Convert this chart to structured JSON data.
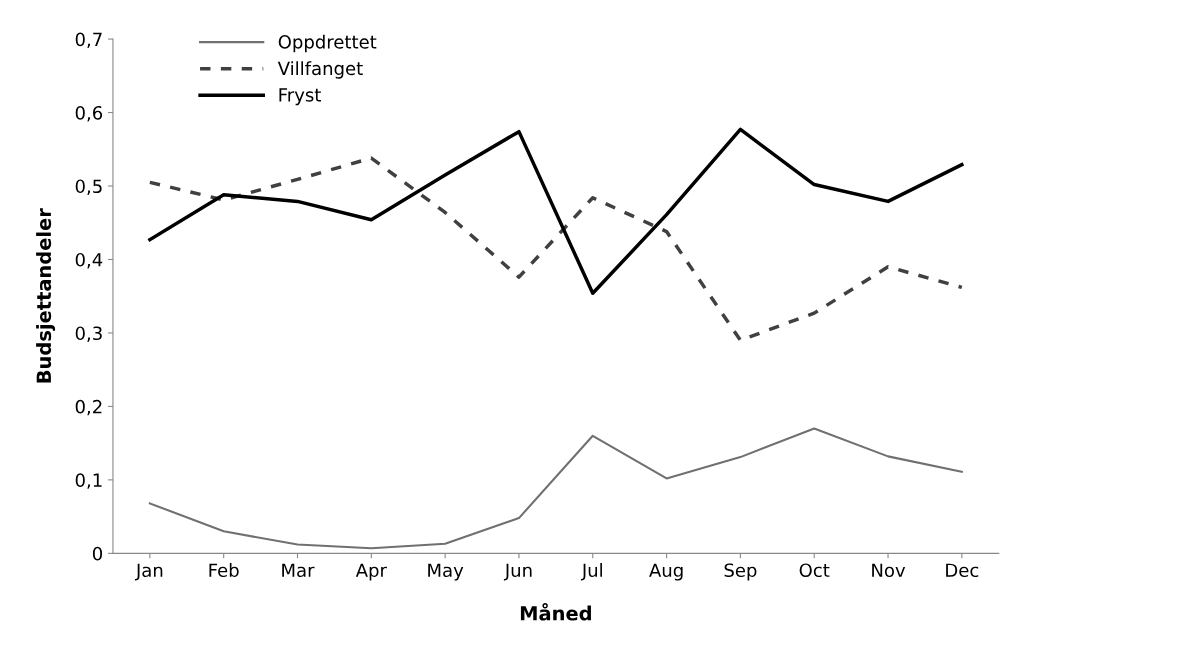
{
  "chart_data": {
    "type": "line",
    "xlabel": "Måned",
    "ylabel": "Budsjettandeler",
    "categories": [
      "Jan",
      "Feb",
      "Mar",
      "Apr",
      "May",
      "Jun",
      "Jul",
      "Aug",
      "Sep",
      "Oct",
      "Nov",
      "Dec"
    ],
    "series": [
      {
        "name": "Oppdrettet",
        "color": "#707070",
        "line_style": "solid",
        "values": [
          0.068,
          0.03,
          0.012,
          0.007,
          0.013,
          0.048,
          0.16,
          0.102,
          0.131,
          0.17,
          0.132,
          0.111
        ]
      },
      {
        "name": "Villfanget",
        "color": "#404040",
        "line_style": "dashed",
        "values": [
          0.505,
          0.481,
          0.509,
          0.538,
          0.464,
          0.376,
          0.484,
          0.438,
          0.29,
          0.327,
          0.39,
          0.362
        ]
      },
      {
        "name": "Fryst",
        "color": "#000000",
        "line_style": "solid",
        "values": [
          0.427,
          0.488,
          0.479,
          0.454,
          0.515,
          0.574,
          0.354,
          0.461,
          0.577,
          0.502,
          0.479,
          0.529
        ]
      }
    ],
    "ylim": [
      0,
      0.7
    ],
    "yticks": [
      {
        "value": 0,
        "label": "0"
      },
      {
        "value": 0.1,
        "label": "0,1"
      },
      {
        "value": 0.2,
        "label": "0,2"
      },
      {
        "value": 0.3,
        "label": "0,3"
      },
      {
        "value": 0.4,
        "label": "0,4"
      },
      {
        "value": 0.5,
        "label": "0,5"
      },
      {
        "value": 0.6,
        "label": "0,6"
      },
      {
        "value": 0.7,
        "label": "0,7"
      }
    ],
    "grid": false,
    "legend": "top left",
    "marker": "none"
  }
}
